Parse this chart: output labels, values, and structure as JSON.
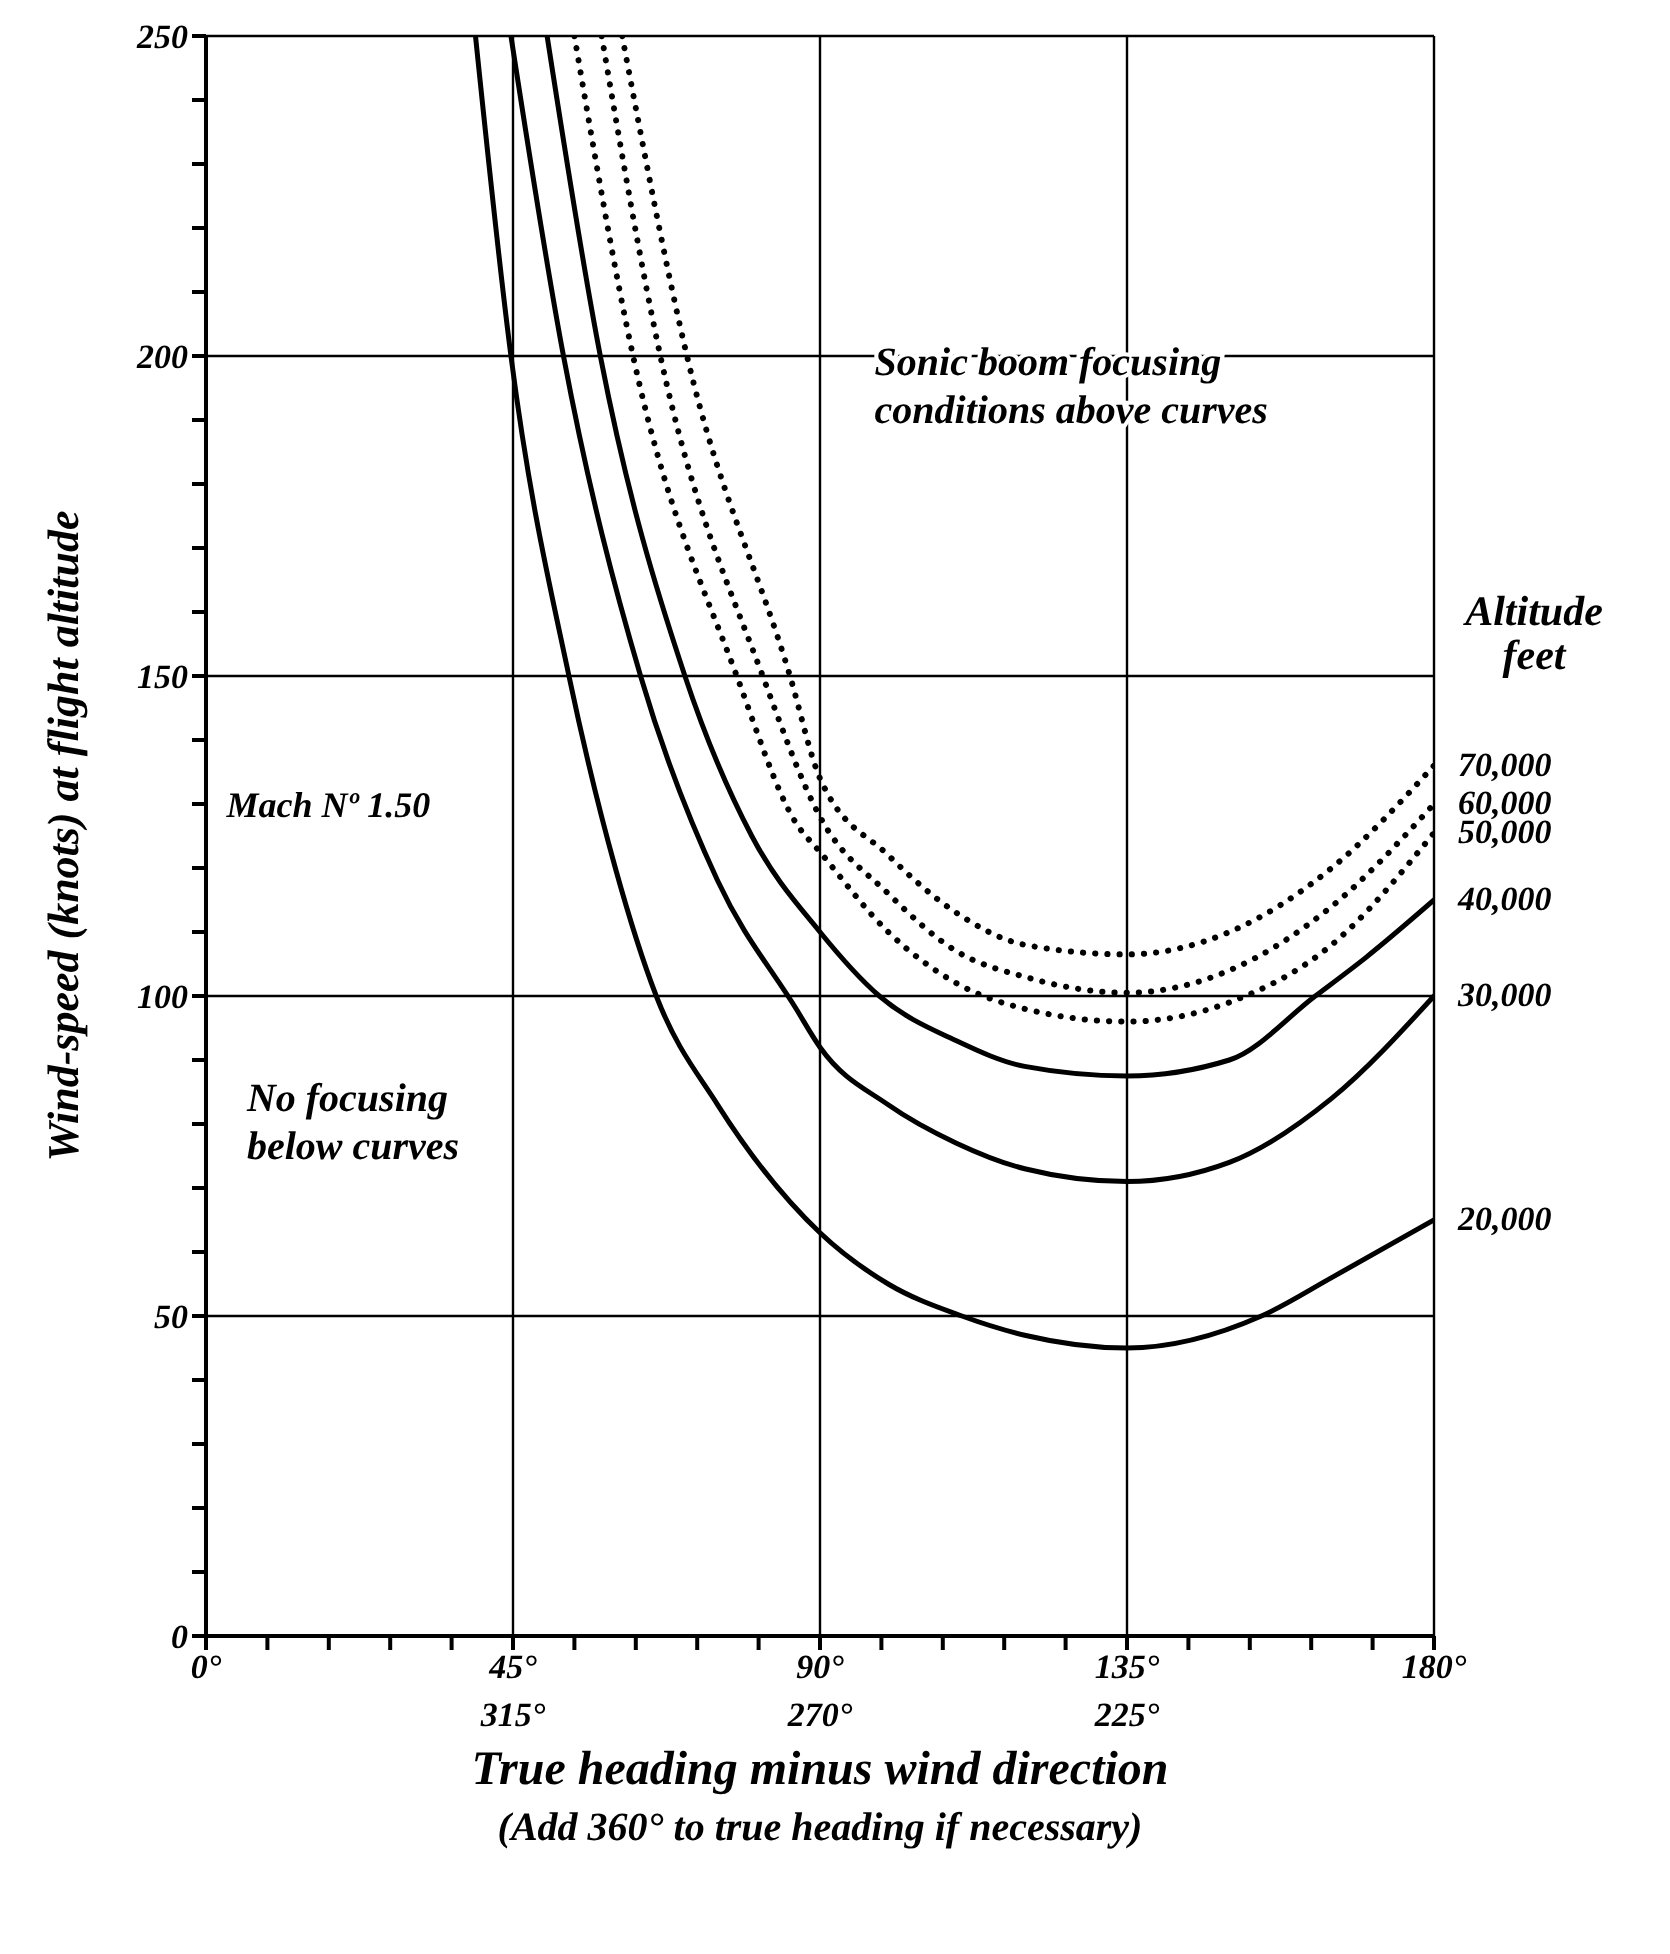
{
  "chart_data": {
    "type": "line",
    "xlabel": "True heading minus wind direction",
    "ylabel": "Wind-speed (knots) at flight altitude",
    "legend_title": "Altitude\nfeet",
    "annotations": [
      "(Add 360° to true heading if necessary)",
      "Sonic boom focusing\nconditions above curves",
      "Mach Nº 1.50",
      "No focusing\nbelow curves"
    ],
    "xlim": [
      0,
      180
    ],
    "xticks": [
      {
        "value": 0,
        "label": "0°"
      },
      {
        "value": 9,
        "label": null
      },
      {
        "value": 18,
        "label": null
      },
      {
        "value": 27,
        "label": null
      },
      {
        "value": 36,
        "label": null
      },
      {
        "value": 45,
        "label": "45°"
      },
      {
        "value": 54,
        "label": null
      },
      {
        "value": 63,
        "label": null
      },
      {
        "value": 72,
        "label": null
      },
      {
        "value": 81,
        "label": null
      },
      {
        "value": 90,
        "label": "90°"
      },
      {
        "value": 99,
        "label": null
      },
      {
        "value": 108,
        "label": null
      },
      {
        "value": 117,
        "label": null
      },
      {
        "value": 126,
        "label": null
      },
      {
        "value": 135,
        "label": "135°"
      },
      {
        "value": 144,
        "label": null
      },
      {
        "value": 153,
        "label": null
      },
      {
        "value": 162,
        "label": null
      },
      {
        "value": 171,
        "label": null
      },
      {
        "value": 180,
        "label": "180°"
      }
    ],
    "x2lim": [
      360,
      180
    ],
    "x2ticks": [
      {
        "value": 315,
        "label": "315°"
      },
      {
        "value": 270,
        "label": "270°"
      },
      {
        "value": 225,
        "label": "225°"
      }
    ],
    "ylim": [
      0,
      250
    ],
    "yticks": [
      0,
      {
        "value": 10,
        "label": null
      },
      {
        "value": 20,
        "label": null
      },
      {
        "value": 30,
        "label": null
      },
      {
        "value": 40,
        "label": null
      },
      50,
      {
        "value": 60,
        "label": null
      },
      {
        "value": 70,
        "label": null
      },
      {
        "value": 80,
        "label": null
      },
      {
        "value": 90,
        "label": null
      },
      100,
      {
        "value": 110,
        "label": null
      },
      {
        "value": 120,
        "label": null
      },
      {
        "value": 130,
        "label": null
      },
      {
        "value": 140,
        "label": null
      },
      150,
      {
        "value": 160,
        "label": null
      },
      {
        "value": 170,
        "label": null
      },
      {
        "value": 180,
        "label": null
      },
      {
        "value": 190,
        "label": null
      },
      200,
      {
        "value": 210,
        "label": null
      },
      {
        "value": 220,
        "label": null
      },
      {
        "value": 230,
        "label": null
      },
      {
        "value": 240,
        "label": null
      },
      250
    ],
    "grid": true,
    "legend": false,
    "marker": "none",
    "series": [
      {
        "name": "20,000",
        "color": "#000000",
        "line_style": "solid",
        "x": [
          39.5,
          44.7,
          53.2,
          60,
          66,
          75,
          90,
          100,
          110.8,
          120,
          135,
          154.7,
          165,
          180
        ],
        "values": [
          250,
          200,
          150,
          120,
          100,
          83,
          63,
          55,
          50,
          47,
          45,
          50,
          56,
          65
        ]
      },
      {
        "name": "30,000",
        "color": "#000000",
        "line_style": "solid",
        "x": [
          44.7,
          52.4,
          63.7,
          75,
          86.5,
          90,
          100,
          110,
          120,
          135,
          150,
          165,
          180
        ],
        "values": [
          250,
          200,
          150,
          118,
          98,
          92,
          83,
          77,
          73,
          71,
          74,
          84,
          100
        ]
      },
      {
        "name": "40,000",
        "color": "#000000",
        "line_style": "solid",
        "x": [
          50,
          57.8,
          70.2,
          80,
          90,
          98.7,
          110,
          120,
          135,
          150,
          162.6,
          170,
          180
        ],
        "values": [
          250,
          200,
          150,
          125,
          110,
          100,
          93,
          89,
          87.5,
          90,
          100,
          106,
          115
        ]
      },
      {
        "name": "50,000",
        "color": "#000000",
        "line_style": "dotted",
        "x": [
          54,
          62.6,
          77.8,
          86.5,
          90,
          100,
          110,
          120,
          135,
          150,
          165,
          180
        ],
        "values": [
          250,
          200,
          150,
          127,
          122.5,
          110,
          102,
          98,
          96,
          99,
          108,
          125.5
        ]
      },
      {
        "name": "60,000",
        "color": "#000000",
        "line_style": "dotted",
        "x": [
          58,
          66.6,
          81.6,
          90,
          100,
          110,
          120,
          135,
          150,
          165,
          180
        ],
        "values": [
          250,
          200,
          150,
          128,
          116,
          107,
          103,
          100.5,
          104,
          114,
          130
        ]
      },
      {
        "name": "70,000",
        "color": "#000000",
        "line_style": "dotted",
        "x": [
          61,
          70.5,
          85.6,
          90,
          100,
          110,
          120,
          135,
          150,
          165,
          180
        ],
        "values": [
          250,
          200,
          150,
          134,
          122,
          113,
          108,
          106.5,
          110,
          120,
          136
        ]
      }
    ]
  }
}
